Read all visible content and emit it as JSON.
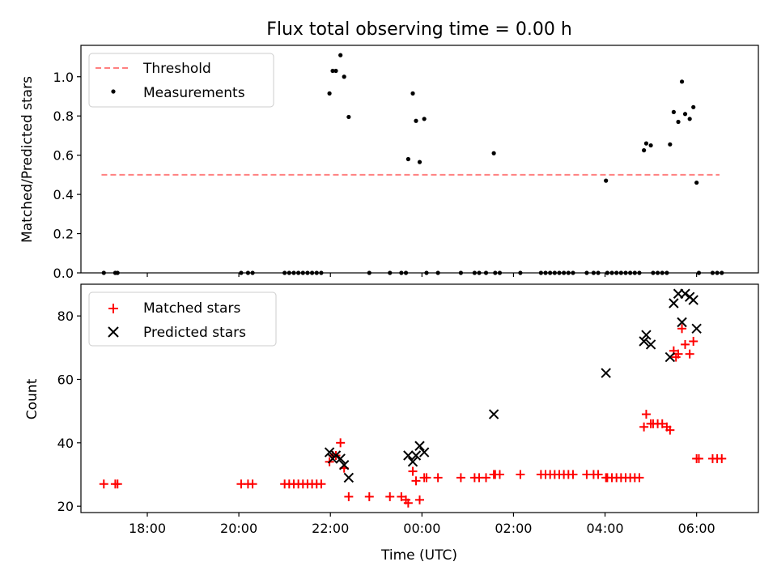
{
  "title": "Flux total observing time = 0.00 h",
  "chart_data": [
    {
      "type": "scatter",
      "ylabel": "Matched/Predicted stars",
      "xlabel": "",
      "ylim": [
        0,
        1.16
      ],
      "yticks": [
        0.0,
        0.2,
        0.4,
        0.6,
        0.8,
        1.0
      ],
      "ytick_labels": [
        "0.0",
        "0.2",
        "0.4",
        "0.6",
        "0.8",
        "1.0"
      ],
      "legend_position": "upper-left",
      "threshold": {
        "name": "Threshold",
        "value": 0.5,
        "x_range": [
          17.0,
          30.5
        ],
        "color": "#ff8080"
      },
      "series": [
        {
          "name": "Measurements",
          "color": "#000000",
          "points": [
            [
              17.05,
              0
            ],
            [
              17.3,
              0
            ],
            [
              17.35,
              0
            ],
            [
              20.05,
              0
            ],
            [
              20.2,
              0
            ],
            [
              20.3,
              0
            ],
            [
              21.0,
              0
            ],
            [
              21.1,
              0
            ],
            [
              21.2,
              0
            ],
            [
              21.3,
              0
            ],
            [
              21.4,
              0
            ],
            [
              21.5,
              0
            ],
            [
              21.6,
              0
            ],
            [
              21.7,
              0
            ],
            [
              21.8,
              0
            ],
            [
              21.98,
              0.915
            ],
            [
              22.05,
              1.03
            ],
            [
              22.12,
              1.03
            ],
            [
              22.22,
              1.11
            ],
            [
              22.3,
              1.0
            ],
            [
              22.4,
              0.795
            ],
            [
              22.85,
              0
            ],
            [
              23.3,
              0
            ],
            [
              23.55,
              0
            ],
            [
              23.65,
              0
            ],
            [
              23.7,
              0.58
            ],
            [
              23.8,
              0.915
            ],
            [
              23.87,
              0.775
            ],
            [
              23.95,
              0.565
            ],
            [
              24.05,
              0.785
            ],
            [
              24.1,
              0
            ],
            [
              24.35,
              0
            ],
            [
              24.85,
              0
            ],
            [
              25.15,
              0
            ],
            [
              25.25,
              0
            ],
            [
              25.4,
              0
            ],
            [
              25.6,
              0
            ],
            [
              25.7,
              0
            ],
            [
              25.57,
              0.61
            ],
            [
              26.15,
              0
            ],
            [
              26.6,
              0
            ],
            [
              26.7,
              0
            ],
            [
              26.8,
              0
            ],
            [
              26.9,
              0
            ],
            [
              27.0,
              0
            ],
            [
              27.1,
              0
            ],
            [
              27.2,
              0
            ],
            [
              27.3,
              0
            ],
            [
              27.6,
              0
            ],
            [
              27.75,
              0
            ],
            [
              27.85,
              0
            ],
            [
              28.02,
              0.47
            ],
            [
              28.05,
              0
            ],
            [
              28.15,
              0
            ],
            [
              28.25,
              0
            ],
            [
              28.35,
              0
            ],
            [
              28.45,
              0
            ],
            [
              28.55,
              0
            ],
            [
              28.65,
              0
            ],
            [
              28.75,
              0
            ],
            [
              28.85,
              0.625
            ],
            [
              28.9,
              0.66
            ],
            [
              29.0,
              0.65
            ],
            [
              29.05,
              0
            ],
            [
              29.15,
              0
            ],
            [
              29.25,
              0
            ],
            [
              29.35,
              0
            ],
            [
              29.42,
              0.655
            ],
            [
              29.5,
              0.82
            ],
            [
              29.6,
              0.77
            ],
            [
              29.68,
              0.975
            ],
            [
              29.75,
              0.81
            ],
            [
              29.85,
              0.785
            ],
            [
              29.93,
              0.845
            ],
            [
              30.0,
              0.46
            ],
            [
              30.05,
              0
            ],
            [
              30.35,
              0
            ],
            [
              30.45,
              0
            ],
            [
              30.55,
              0
            ]
          ]
        }
      ]
    },
    {
      "type": "scatter",
      "ylabel": "Count",
      "xlabel": "Time (UTC)",
      "ylim": [
        18,
        90
      ],
      "yticks": [
        20,
        40,
        60,
        80
      ],
      "ytick_labels": [
        "20",
        "40",
        "60",
        "80"
      ],
      "xlim": [
        16.55,
        31.35
      ],
      "xticks": [
        18,
        20,
        22,
        24,
        26,
        28,
        30
      ],
      "xtick_labels": [
        "18:00",
        "20:00",
        "22:00",
        "00:00",
        "02:00",
        "04:00",
        "06:00"
      ],
      "legend_position": "upper-left",
      "series": [
        {
          "name": "Matched stars",
          "color": "#ff0000",
          "marker": "plus",
          "points": [
            [
              17.05,
              27
            ],
            [
              17.3,
              27
            ],
            [
              17.35,
              27
            ],
            [
              20.05,
              27
            ],
            [
              20.2,
              27
            ],
            [
              20.3,
              27
            ],
            [
              21.0,
              27
            ],
            [
              21.1,
              27
            ],
            [
              21.2,
              27
            ],
            [
              21.3,
              27
            ],
            [
              21.4,
              27
            ],
            [
              21.5,
              27
            ],
            [
              21.6,
              27
            ],
            [
              21.7,
              27
            ],
            [
              21.8,
              27
            ],
            [
              21.98,
              34
            ],
            [
              22.05,
              36
            ],
            [
              22.12,
              36
            ],
            [
              22.22,
              40
            ],
            [
              22.3,
              32
            ],
            [
              22.4,
              23
            ],
            [
              22.85,
              23
            ],
            [
              23.3,
              23
            ],
            [
              23.55,
              23
            ],
            [
              23.65,
              22
            ],
            [
              23.7,
              21
            ],
            [
              23.8,
              31
            ],
            [
              23.87,
              28
            ],
            [
              23.95,
              22
            ],
            [
              24.05,
              29
            ],
            [
              24.1,
              29
            ],
            [
              24.35,
              29
            ],
            [
              24.85,
              29
            ],
            [
              25.15,
              29
            ],
            [
              25.25,
              29
            ],
            [
              25.4,
              29
            ],
            [
              25.57,
              30
            ],
            [
              25.6,
              30
            ],
            [
              25.7,
              30
            ],
            [
              26.15,
              30
            ],
            [
              26.6,
              30
            ],
            [
              26.7,
              30
            ],
            [
              26.8,
              30
            ],
            [
              26.9,
              30
            ],
            [
              27.0,
              30
            ],
            [
              27.1,
              30
            ],
            [
              27.2,
              30
            ],
            [
              27.3,
              30
            ],
            [
              27.6,
              30
            ],
            [
              27.75,
              30
            ],
            [
              27.85,
              30
            ],
            [
              28.02,
              29
            ],
            [
              28.05,
              29
            ],
            [
              28.15,
              29
            ],
            [
              28.25,
              29
            ],
            [
              28.35,
              29
            ],
            [
              28.45,
              29
            ],
            [
              28.55,
              29
            ],
            [
              28.65,
              29
            ],
            [
              28.75,
              29
            ],
            [
              28.85,
              45
            ],
            [
              28.9,
              49
            ],
            [
              29.0,
              46
            ],
            [
              29.05,
              46
            ],
            [
              29.15,
              46
            ],
            [
              29.25,
              46
            ],
            [
              29.35,
              45
            ],
            [
              29.42,
              44
            ],
            [
              29.5,
              69
            ],
            [
              29.55,
              67
            ],
            [
              29.6,
              68
            ],
            [
              29.68,
              76
            ],
            [
              29.75,
              71
            ],
            [
              29.85,
              68
            ],
            [
              29.93,
              72
            ],
            [
              30.0,
              35
            ],
            [
              30.05,
              35
            ],
            [
              30.35,
              35
            ],
            [
              30.45,
              35
            ],
            [
              30.55,
              35
            ]
          ]
        },
        {
          "name": "Predicted stars",
          "color": "#000000",
          "marker": "x",
          "points": [
            [
              21.98,
              37
            ],
            [
              22.05,
              35
            ],
            [
              22.12,
              36
            ],
            [
              22.22,
              35
            ],
            [
              22.3,
              33
            ],
            [
              22.4,
              29
            ],
            [
              23.7,
              36
            ],
            [
              23.8,
              34
            ],
            [
              23.87,
              36
            ],
            [
              23.95,
              39
            ],
            [
              24.05,
              37
            ],
            [
              25.57,
              49
            ],
            [
              28.02,
              62
            ],
            [
              28.85,
              72
            ],
            [
              28.9,
              74
            ],
            [
              29.0,
              71
            ],
            [
              29.42,
              67
            ],
            [
              29.5,
              84
            ],
            [
              29.6,
              87
            ],
            [
              29.68,
              78
            ],
            [
              29.75,
              87
            ],
            [
              29.85,
              86
            ],
            [
              29.93,
              85
            ],
            [
              30.0,
              76
            ]
          ]
        }
      ]
    }
  ]
}
